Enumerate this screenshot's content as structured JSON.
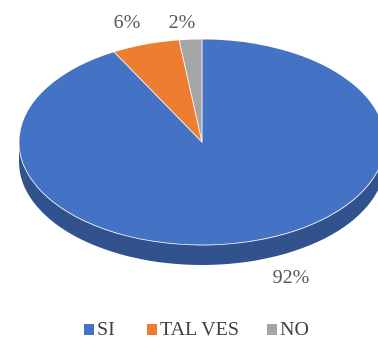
{
  "chart_data": {
    "type": "pie",
    "style": "3d",
    "categories": [
      "SI",
      "TAL VES",
      "NO"
    ],
    "values": [
      92,
      6,
      2
    ],
    "data_labels": [
      "92%",
      "6%",
      "2%"
    ],
    "colors": [
      "#4472C4",
      "#ED7D31",
      "#A5A5A5"
    ],
    "legend_position": "bottom"
  }
}
